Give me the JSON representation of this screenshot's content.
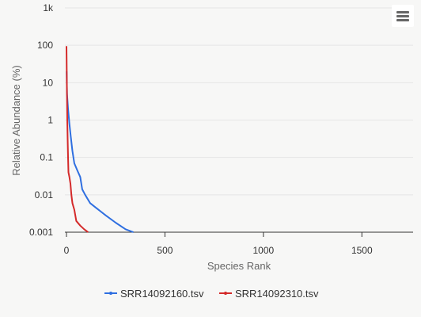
{
  "chart_data": {
    "type": "line",
    "title": "",
    "xlabel": "Species Rank",
    "ylabel": "Relative Abundance (%)",
    "xlim": [
      -8,
      1760
    ],
    "ylim": [
      0.001,
      1000
    ],
    "y_scale": "log",
    "x_ticks": [
      0,
      500,
      1000,
      1500
    ],
    "x_tick_labels": [
      "0",
      "500",
      "1000",
      "1500"
    ],
    "y_ticks": [
      0.001,
      0.01,
      0.1,
      1,
      10,
      100,
      1000
    ],
    "y_tick_labels": [
      "0.001",
      "0.01",
      "0.1",
      "1",
      "10",
      "100",
      "1k"
    ],
    "grid": "horizontal",
    "legend_position": "bottom",
    "series": [
      {
        "name": "SRR14092160.tsv",
        "color": "#2f6fe0",
        "points": [
          [
            1,
            20
          ],
          [
            3,
            5
          ],
          [
            8,
            2
          ],
          [
            15,
            0.8
          ],
          [
            22,
            0.35
          ],
          [
            30,
            0.15
          ],
          [
            40,
            0.07
          ],
          [
            55,
            0.045
          ],
          [
            70,
            0.03
          ],
          [
            80,
            0.014
          ],
          [
            95,
            0.01
          ],
          [
            120,
            0.006
          ],
          [
            150,
            0.0045
          ],
          [
            200,
            0.0028
          ],
          [
            250,
            0.0018
          ],
          [
            300,
            0.0012
          ],
          [
            340,
            0.001
          ]
        ]
      },
      {
        "name": "SRR14092310.tsv",
        "color": "#d42a2a",
        "points": [
          [
            0,
            95
          ],
          [
            1,
            40
          ],
          [
            2,
            8
          ],
          [
            4,
            1
          ],
          [
            6,
            0.3
          ],
          [
            8,
            0.1
          ],
          [
            10,
            0.04
          ],
          [
            15,
            0.03
          ],
          [
            20,
            0.02
          ],
          [
            25,
            0.01
          ],
          [
            30,
            0.006
          ],
          [
            40,
            0.004
          ],
          [
            50,
            0.002
          ],
          [
            70,
            0.0015
          ],
          [
            90,
            0.0012
          ],
          [
            110,
            0.001
          ]
        ]
      }
    ]
  },
  "menu": {
    "icon": "hamburger-icon"
  }
}
